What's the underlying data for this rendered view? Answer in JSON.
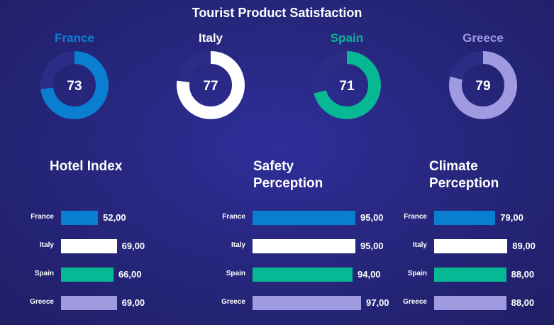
{
  "title": "Tourist Product Satisfaction",
  "colors": {
    "France": "#0a7fd1",
    "Italy": "#ffffff",
    "Spain": "#07b894",
    "Greece": "#a09ae0",
    "ring_track": "#2b2c86"
  },
  "chart_data": [
    {
      "type": "donut",
      "title": "",
      "series": [
        {
          "name": "France",
          "value": 73
        },
        {
          "name": "Italy",
          "value": 77
        },
        {
          "name": "Spain",
          "value": 71
        },
        {
          "name": "Greece",
          "value": 79
        }
      ],
      "max": 100
    },
    {
      "type": "bar",
      "orientation": "horizontal",
      "title": "Hotel Index",
      "categories": [
        "France",
        "Italy",
        "Spain",
        "Greece"
      ],
      "values": [
        52,
        69,
        66,
        69
      ],
      "value_labels": [
        "52,00",
        "69,00",
        "66,00",
        "69,00"
      ]
    },
    {
      "type": "bar",
      "orientation": "horizontal",
      "title": "Safety Perception",
      "title_lines": [
        "Safety",
        "Perception"
      ],
      "categories": [
        "France",
        "Italy",
        "Spain",
        "Greece"
      ],
      "values": [
        95,
        95,
        94,
        97
      ],
      "value_labels": [
        "95,00",
        "95,00",
        "94,00",
        "97,00"
      ]
    },
    {
      "type": "bar",
      "orientation": "horizontal",
      "title": "Climate Perception",
      "title_lines": [
        "Climate",
        "Perception"
      ],
      "categories": [
        "France",
        "Italy",
        "Spain",
        "Greece"
      ],
      "values": [
        79,
        89,
        88,
        88
      ],
      "value_labels": [
        "79,00",
        "89,00",
        "88,00",
        "88,00"
      ]
    }
  ]
}
